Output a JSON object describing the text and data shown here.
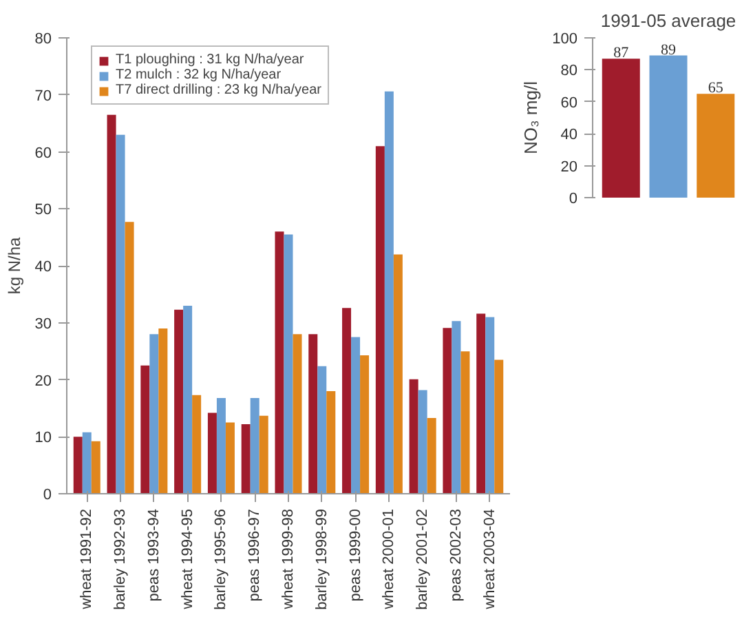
{
  "chart_data": [
    {
      "type": "bar",
      "ylabel": "kg N/ha",
      "categories": [
        "wheat 1991-92",
        "barley 1992-93",
        "peas 1993-94",
        "wheat 1994-95",
        "barley 1995-96",
        "peas 1996-97",
        "wheat 1999-98",
        "barley 1998-99",
        "peas 1999-00",
        "wheat 2000-01",
        "barley 2001-02",
        "peas 2002-03",
        "wheat 2003-04"
      ],
      "series": [
        {
          "name": "T1 ploughing : 31 kg N/ha/year",
          "color": "#a01c2c",
          "values": [
            10,
            66.5,
            22.5,
            32.3,
            14.2,
            12.2,
            46,
            28,
            32.6,
            61,
            20.1,
            29.1,
            31.6
          ]
        },
        {
          "name": "T2 mulch : 32 kg N/ha/year",
          "color": "#6a9fd4",
          "values": [
            10.8,
            63,
            28,
            33,
            16.8,
            16.8,
            45.5,
            22.4,
            27.5,
            70.6,
            18.2,
            30.3,
            31
          ]
        },
        {
          "name": "T7 direct drilling : 23 kg N/ha/year",
          "color": "#e0861c",
          "values": [
            9.2,
            47.7,
            29,
            17.3,
            12.5,
            13.7,
            28,
            18,
            24.3,
            42,
            13.3,
            25,
            23.5
          ]
        }
      ],
      "ylim": [
        0,
        80
      ],
      "yticks": [
        0,
        10,
        20,
        30,
        40,
        50,
        60,
        70,
        80
      ],
      "grid": false,
      "legend": "top left"
    },
    {
      "type": "bar",
      "title": "1991-05 average",
      "ylabel": "NO₃ mg/l",
      "categories": [
        null,
        null,
        null
      ],
      "values": [
        87,
        89,
        65
      ],
      "colors": [
        "#a01c2c",
        "#6a9fd4",
        "#e0861c"
      ],
      "ylim": [
        0,
        100
      ],
      "yticks": [
        0,
        20,
        40,
        60,
        80,
        100
      ],
      "data_labels": true,
      "grid": false,
      "tick_labels": "y"
    }
  ]
}
